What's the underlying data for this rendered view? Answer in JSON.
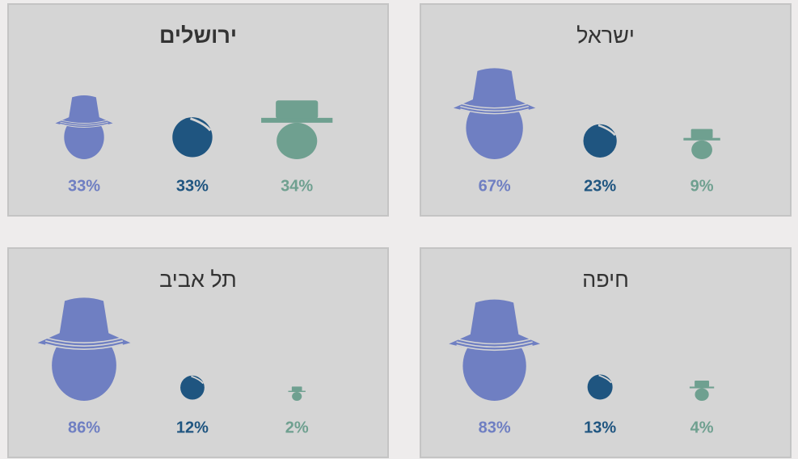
{
  "chart_data": [
    {
      "type": "pictogram",
      "title": "ירושלים",
      "title_bold": true,
      "values": [
        33,
        33,
        34
      ],
      "value_labels": [
        "33%",
        "33%",
        "34%"
      ],
      "colors": [
        "#6f7fc2",
        "#1f5580",
        "#6fa090"
      ]
    },
    {
      "type": "pictogram",
      "title": "ישראל",
      "title_bold": false,
      "values": [
        67,
        23,
        9
      ],
      "value_labels": [
        "67%",
        "23%",
        "9%"
      ],
      "colors": [
        "#6f7fc2",
        "#1f5580",
        "#6fa090"
      ]
    },
    {
      "type": "pictogram",
      "title": "תל אביב",
      "title_bold": false,
      "values": [
        86,
        12,
        2
      ],
      "value_labels": [
        "86%",
        "12%",
        "2%"
      ],
      "colors": [
        "#6f7fc2",
        "#1f5580",
        "#6fa090"
      ]
    },
    {
      "type": "pictogram",
      "title": "חיפה",
      "title_bold": false,
      "values": [
        83,
        13,
        4
      ],
      "value_labels": [
        "83%",
        "13%",
        "4%"
      ],
      "colors": [
        "#6f7fc2",
        "#1f5580",
        "#6fa090"
      ]
    }
  ]
}
